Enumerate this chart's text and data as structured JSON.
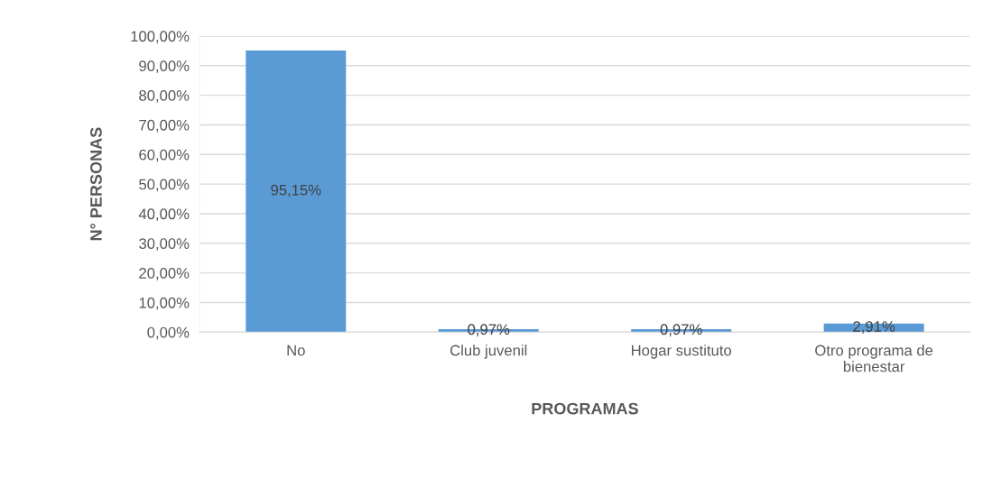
{
  "chart_data": {
    "type": "bar",
    "xlabel": "PROGRAMAS",
    "ylabel": "N° PERSONAS",
    "categories": [
      "No",
      "Club juvenil",
      "Hogar sustituto",
      "Otro programa de\nbienestar"
    ],
    "values": [
      95.15,
      0.97,
      0.97,
      2.91
    ],
    "color": "#5b9bd5",
    "value_labels": [
      "95,15%",
      "0,97%",
      "0,97%",
      "2,91%"
    ],
    "ylim": [
      0,
      100
    ],
    "yticks": [
      {
        "value": 0,
        "label": "0,00%"
      },
      {
        "value": 10,
        "label": "10,00%"
      },
      {
        "value": 20,
        "label": "20,00%"
      },
      {
        "value": 30,
        "label": "30,00%"
      },
      {
        "value": 40,
        "label": "40,00%"
      },
      {
        "value": 50,
        "label": "50,00%"
      },
      {
        "value": 60,
        "label": "60,00%"
      },
      {
        "value": 70,
        "label": "70,00%"
      },
      {
        "value": 80,
        "label": "80,00%"
      },
      {
        "value": 90,
        "label": "90,00%"
      },
      {
        "value": 100,
        "label": "100,00%"
      }
    ],
    "grid": "y",
    "legend": false
  }
}
